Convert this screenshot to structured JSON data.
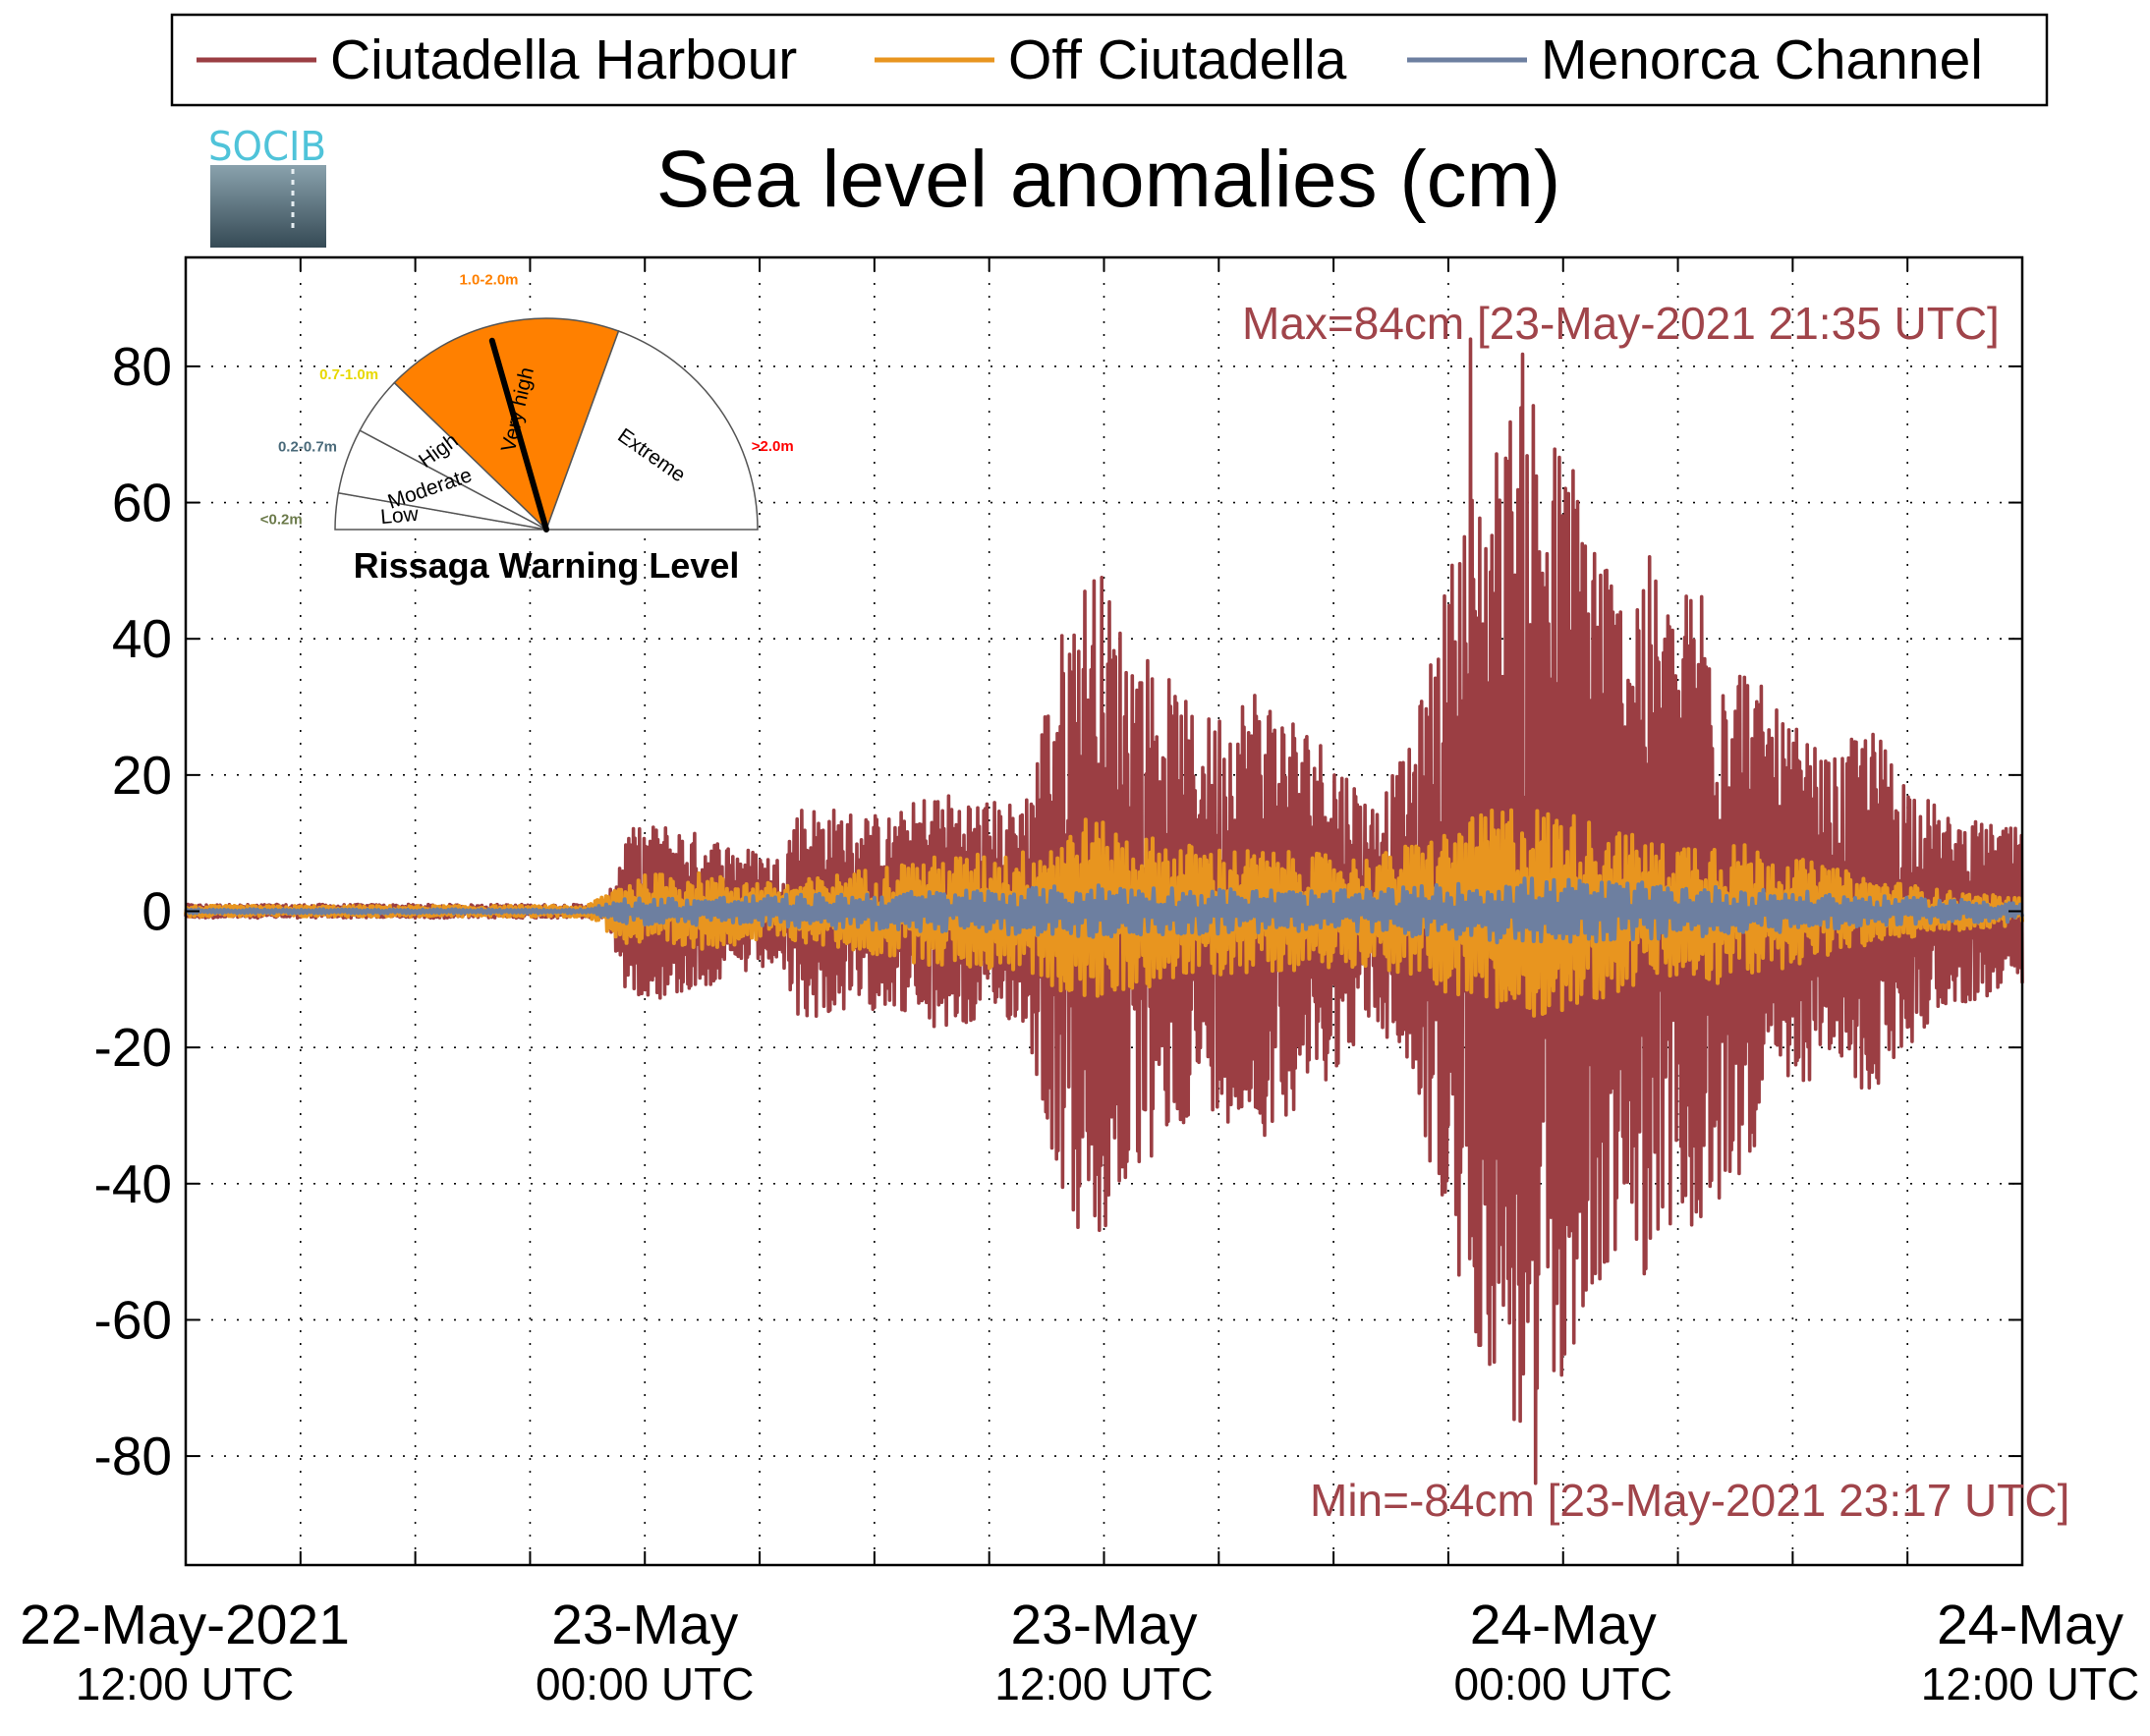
{
  "chart_data": {
    "type": "line",
    "title": "Sea level anomalies (cm)",
    "xlabel": "",
    "ylabel": "",
    "ylim": [
      -96,
      96
    ],
    "yticks": [
      -80,
      -60,
      -40,
      -20,
      0,
      20,
      40,
      60,
      80
    ],
    "x_range_hours": [
      0,
      48
    ],
    "x_origin": "22-May-2021 12:00 UTC",
    "x_ticks": [
      {
        "hours": 0,
        "line1": "22-May-2021",
        "line2": "12:00 UTC"
      },
      {
        "hours": 12,
        "line1": "23-May",
        "line2": "00:00 UTC"
      },
      {
        "hours": 24,
        "line1": "23-May",
        "line2": "12:00 UTC"
      },
      {
        "hours": 36,
        "line1": "24-May",
        "line2": "00:00 UTC"
      },
      {
        "hours": 48,
        "line1": "24-May",
        "line2": "12:00 UTC"
      }
    ],
    "x_minor_ticks_hours": [
      3,
      6,
      9,
      15,
      18,
      21,
      27,
      30,
      33,
      39,
      42,
      45
    ],
    "grid": true,
    "legend_position": "top",
    "series": [
      {
        "name": "Ciutadella Harbour",
        "color": "#9b3e43",
        "envelope_hours": [
          0,
          10.5,
          11.0,
          11.5,
          12.5,
          15.5,
          16.0,
          18.5,
          19.5,
          21.5,
          22.0,
          22.8,
          23.3,
          23.8,
          24.5,
          25.5,
          26.5,
          28.0,
          30.0,
          31.0,
          32.0,
          33.0,
          33.5,
          34.5,
          35.0,
          35.8,
          36.5,
          37.5,
          38.0,
          39.0,
          39.5,
          40.5,
          41.5,
          43.0,
          44.0,
          45.0,
          46.0,
          48.0
        ],
        "envelope_cm": [
          1,
          1,
          1,
          12,
          13,
          8,
          16,
          14,
          18,
          16,
          18,
          40,
          48,
          52,
          42,
          36,
          28,
          34,
          24,
          16,
          24,
          50,
          62,
          72,
          84,
          70,
          66,
          48,
          55,
          44,
          52,
          40,
          30,
          22,
          28,
          20,
          14,
          12
        ],
        "max_point": {
          "hours": 33.58,
          "value": 84
        },
        "min_point": {
          "hours": 35.28,
          "value": -84
        }
      },
      {
        "name": "Off Ciutadella",
        "color": "#e8951f",
        "envelope_hours": [
          0,
          10.5,
          11.5,
          13.0,
          15.5,
          19.5,
          22.0,
          23.5,
          24.5,
          26.0,
          28.0,
          31.0,
          33.0,
          34.5,
          36.0,
          37.5,
          38.5,
          40.0,
          42.0,
          44.0,
          46.0,
          48.0
        ],
        "envelope_cm": [
          0.8,
          0.8,
          5,
          6,
          4,
          8,
          9,
          14,
          12,
          10,
          9,
          8,
          12,
          16,
          15,
          12,
          10,
          11,
          8,
          5,
          3,
          2
        ]
      },
      {
        "name": "Menorca Channel",
        "color": "#6d7fa0",
        "envelope_hours": [
          0,
          10.5,
          11.5,
          13.0,
          16.0,
          19.5,
          22.0,
          24.0,
          26.0,
          30.0,
          33.0,
          35.0,
          37.0,
          39.0,
          42.0,
          45.0,
          48.0
        ],
        "envelope_cm": [
          0.3,
          0.3,
          2,
          2,
          2.5,
          3,
          3.5,
          4,
          3.5,
          3,
          4,
          5,
          4.5,
          4,
          3,
          2,
          1.5
        ]
      }
    ],
    "annotations": [
      {
        "text": "Max=84cm [23-May-2021 21:35 UTC]"
      },
      {
        "text": "Min=-84cm [23-May-2021 23:17 UTC]"
      }
    ]
  },
  "logo": {
    "text": "SOCIB"
  },
  "gauge": {
    "title": "Rissaga Warning Level",
    "needle_level_fraction": 0.78,
    "sectors": [
      {
        "name": "Low",
        "range": "<0.2m",
        "fill": "#ffffff",
        "range_color": "#6b7a4a"
      },
      {
        "name": "Moderate",
        "range": "0.2-0.7m",
        "fill": "#ffffff",
        "range_color": "#4a6a7a"
      },
      {
        "name": "High",
        "range": "0.7-1.0m",
        "fill": "#ffffff",
        "range_color": "#e8d800"
      },
      {
        "name": "Very high",
        "range": "1.0-2.0m",
        "fill": "#ff8000",
        "range_color": "#ff8000"
      },
      {
        "name": "Extreme",
        "range": ">2.0m",
        "fill": "#ffffff",
        "range_color": "#ff0000"
      }
    ]
  }
}
